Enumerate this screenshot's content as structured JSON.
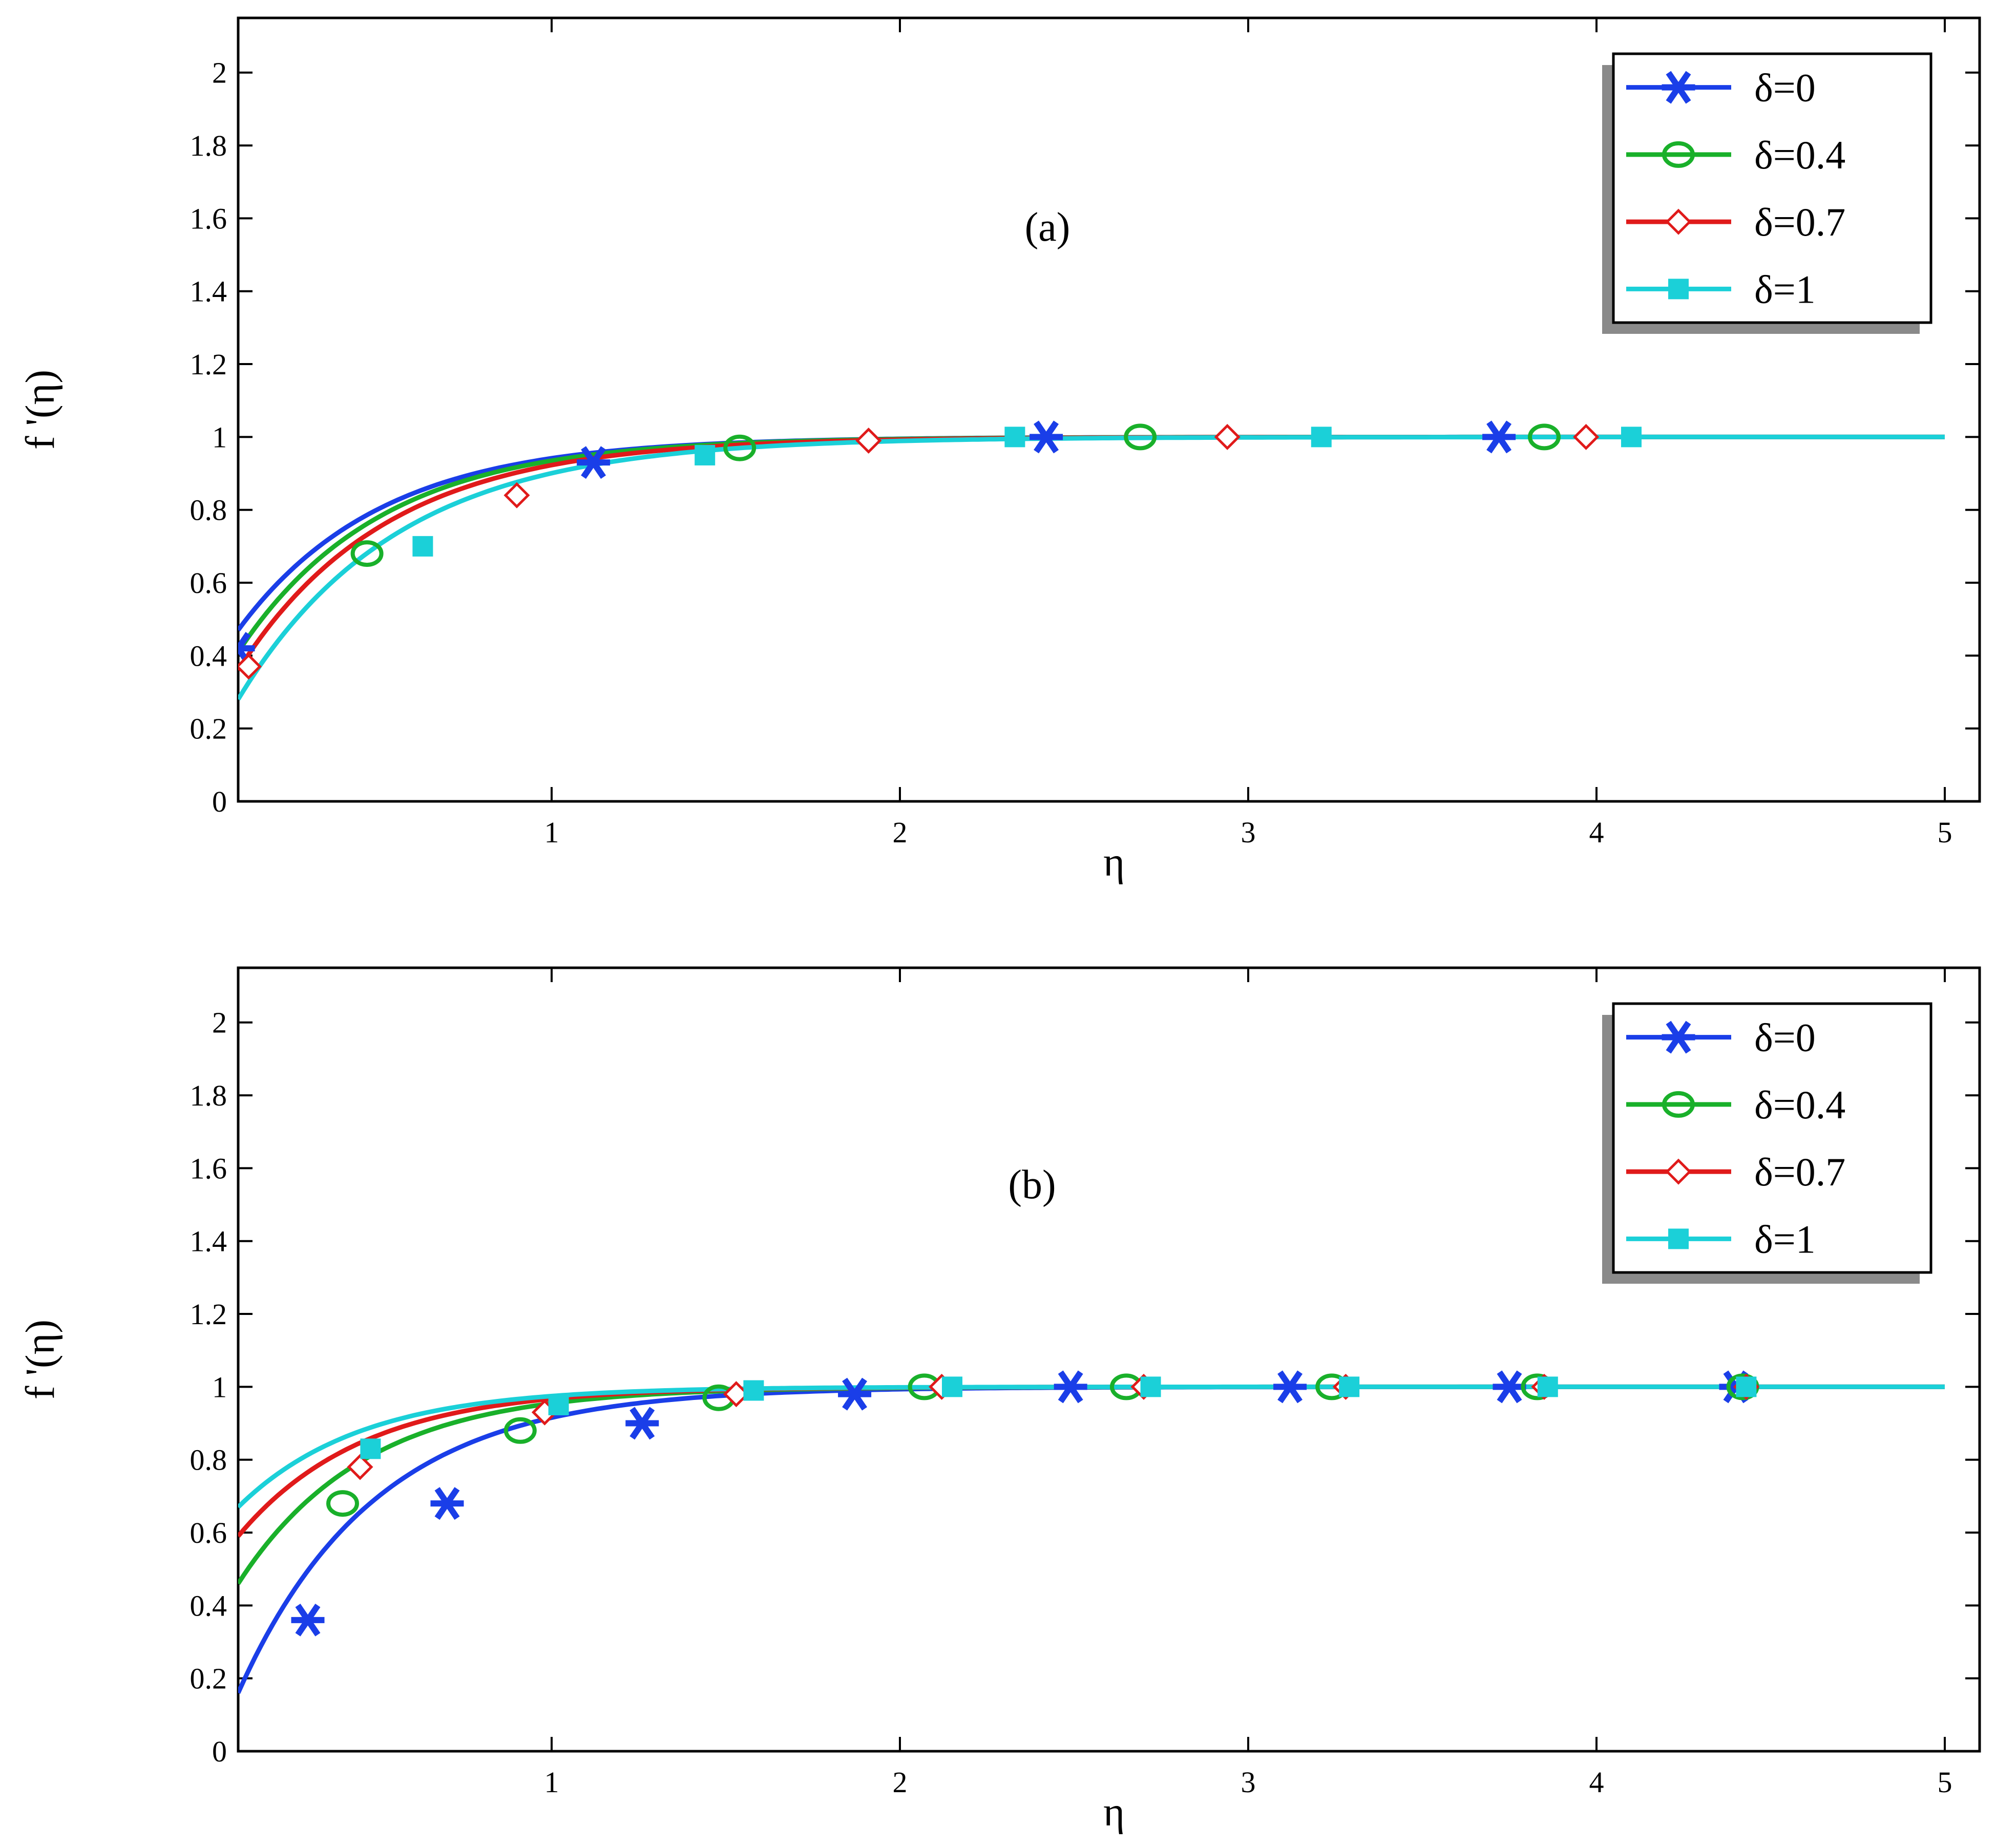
{
  "chart_data": [
    {
      "type": "line",
      "panel_label": "(a)",
      "xlabel": "η",
      "ylabel": "f '(η)",
      "xlim": [
        0.1,
        5.1
      ],
      "ylim": [
        0,
        2.15
      ],
      "xticks": [
        1,
        2,
        3,
        4,
        5
      ],
      "yticks": [
        0,
        0.2,
        0.4,
        0.6,
        0.8,
        1,
        1.2,
        1.4,
        1.6,
        1.8,
        2
      ],
      "xtick_labels": [
        "1",
        "2",
        "3",
        "4",
        "5"
      ],
      "ytick_labels": [
        "0",
        "0.2",
        "0.4",
        "0.6",
        "0.8",
        "1",
        "1.2",
        "1.4",
        "1.6",
        "1.8",
        "2"
      ],
      "legend_position": "top-right",
      "series": [
        {
          "name": "δ=0",
          "color": "#1a3ee8",
          "marker": "asterisk",
          "y0": 0.47,
          "k": 2.45,
          "x0": 0.1,
          "markers": [
            [
              0.1,
              0.42
            ],
            [
              1.12,
              0.93
            ],
            [
              2.42,
              1.0
            ],
            [
              3.72,
              1.0
            ]
          ]
        },
        {
          "name": "δ=0.4",
          "color": "#19b02a",
          "marker": "circle",
          "y0": 0.41,
          "k": 2.45,
          "x0": 0.1,
          "markers": [
            [
              0.47,
              0.68
            ],
            [
              1.54,
              0.97
            ],
            [
              2.69,
              1.0
            ],
            [
              3.85,
              1.0
            ]
          ]
        },
        {
          "name": "δ=0.7",
          "color": "#e01a1a",
          "marker": "diamond",
          "y0": 0.36,
          "k": 2.35,
          "x0": 0.1,
          "markers": [
            [
              0.13,
              0.37
            ],
            [
              0.9,
              0.84
            ],
            [
              1.91,
              0.99
            ],
            [
              2.94,
              1.0
            ],
            [
              3.97,
              1.0
            ]
          ]
        },
        {
          "name": "δ=1",
          "color": "#1bd0d8",
          "marker": "square",
          "y0": 0.28,
          "k": 2.2,
          "x0": 0.1,
          "markers": [
            [
              0.63,
              0.7
            ],
            [
              1.44,
              0.95
            ],
            [
              2.33,
              1.0
            ],
            [
              3.21,
              1.0
            ],
            [
              4.1,
              1.0
            ]
          ]
        }
      ]
    },
    {
      "type": "line",
      "panel_label": "(b)",
      "xlabel": "η",
      "ylabel": "f '(η)",
      "xlim": [
        0.1,
        5.1
      ],
      "ylim": [
        0,
        2.15
      ],
      "xticks": [
        1,
        2,
        3,
        4,
        5
      ],
      "yticks": [
        0,
        0.2,
        0.4,
        0.6,
        0.8,
        1,
        1.2,
        1.4,
        1.6,
        1.8,
        2
      ],
      "xtick_labels": [
        "1",
        "2",
        "3",
        "4",
        "5"
      ],
      "ytick_labels": [
        "0",
        "0.2",
        "0.4",
        "0.6",
        "0.8",
        "1",
        "1.2",
        "1.4",
        "1.6",
        "1.8",
        "2"
      ],
      "legend_position": "top-right",
      "series": [
        {
          "name": "δ=0",
          "color": "#1a3ee8",
          "marker": "asterisk",
          "y0": 0.16,
          "k": 2.55,
          "x0": 0.1,
          "markers": [
            [
              0.3,
              0.36
            ],
            [
              0.7,
              0.68
            ],
            [
              1.26,
              0.9
            ],
            [
              1.87,
              0.98
            ],
            [
              2.49,
              1.0
            ],
            [
              3.12,
              1.0
            ],
            [
              3.75,
              1.0
            ],
            [
              4.4,
              1.0
            ]
          ]
        },
        {
          "name": "δ=0.4",
          "color": "#19b02a",
          "marker": "circle",
          "y0": 0.46,
          "k": 2.75,
          "x0": 0.1,
          "markers": [
            [
              0.4,
              0.68
            ],
            [
              0.91,
              0.88
            ],
            [
              1.48,
              0.97
            ],
            [
              2.07,
              1.0
            ],
            [
              2.65,
              1.0
            ],
            [
              3.24,
              1.0
            ],
            [
              3.83,
              1.0
            ],
            [
              4.42,
              1.0
            ]
          ]
        },
        {
          "name": "δ=0.7",
          "color": "#e01a1a",
          "marker": "diamond",
          "y0": 0.59,
          "k": 2.8,
          "x0": 0.1,
          "markers": [
            [
              0.45,
              0.78
            ],
            [
              0.98,
              0.93
            ],
            [
              1.53,
              0.98
            ],
            [
              2.12,
              1.0
            ],
            [
              2.7,
              1.0
            ],
            [
              3.28,
              1.0
            ],
            [
              3.85,
              1.0
            ],
            [
              4.43,
              1.0
            ]
          ]
        },
        {
          "name": "δ=1",
          "color": "#1bd0d8",
          "marker": "square",
          "y0": 0.67,
          "k": 2.85,
          "x0": 0.1,
          "markers": [
            [
              0.48,
              0.83
            ],
            [
              1.02,
              0.95
            ],
            [
              1.58,
              0.99
            ],
            [
              2.15,
              1.0
            ],
            [
              2.72,
              1.0
            ],
            [
              3.29,
              1.0
            ],
            [
              3.86,
              1.0
            ],
            [
              4.43,
              1.0
            ]
          ]
        }
      ]
    }
  ]
}
